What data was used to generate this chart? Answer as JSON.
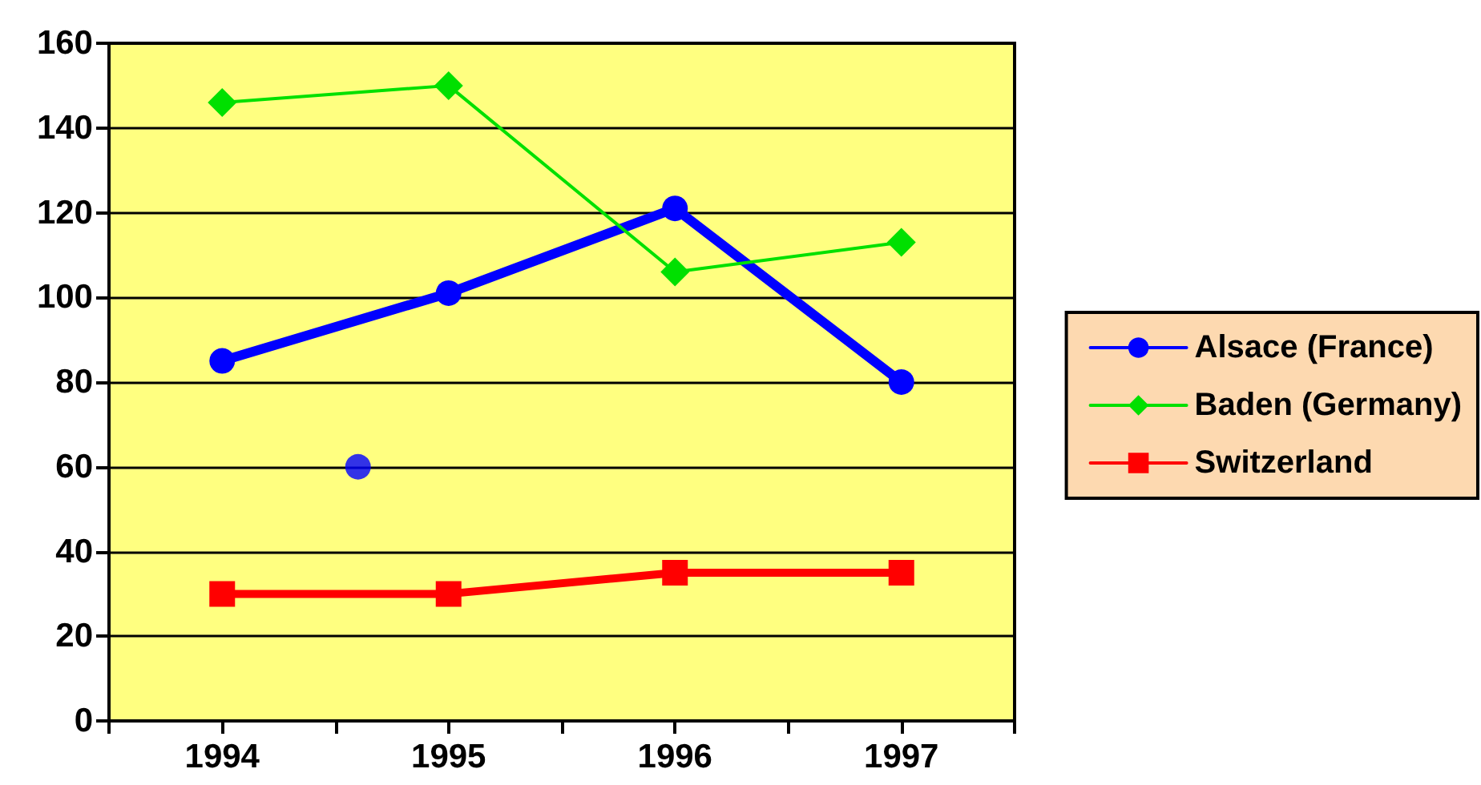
{
  "chart_data": {
    "type": "line",
    "x": [
      1994,
      1995,
      1996,
      1997
    ],
    "xlim": [
      1993.5,
      1997.5
    ],
    "xticks": [
      {
        "value": 1993.5,
        "label": null
      },
      {
        "value": 1994,
        "label": "1994"
      },
      {
        "value": 1994.5,
        "label": null
      },
      {
        "value": 1995,
        "label": "1995"
      },
      {
        "value": 1995.5,
        "label": null
      },
      {
        "value": 1996,
        "label": "1996"
      },
      {
        "value": 1996.5,
        "label": null
      },
      {
        "value": 1997,
        "label": "1997"
      },
      {
        "value": 1997.5,
        "label": null
      }
    ],
    "ylim": [
      0,
      160
    ],
    "yticks": [
      0,
      20,
      40,
      60,
      80,
      100,
      120,
      140,
      160
    ],
    "series": [
      {
        "name": "Alsace (France)",
        "color": "#0000ff",
        "marker": "circle",
        "values": [
          85,
          101,
          121,
          80
        ]
      },
      {
        "name": "Baden (Germany)",
        "color": "#00e000",
        "marker": "diamond",
        "values": [
          146,
          150,
          106,
          113
        ]
      },
      {
        "name": "Switzerland",
        "color": "#ff0000",
        "marker": "square",
        "values": [
          30,
          30,
          35,
          35
        ]
      },
      {
        "type": "scatter",
        "color": "#0000ff",
        "marker": "circle",
        "x": [
          1994.6
        ],
        "values": [
          60
        ]
      }
    ],
    "grid": "y",
    "legend": "right"
  }
}
